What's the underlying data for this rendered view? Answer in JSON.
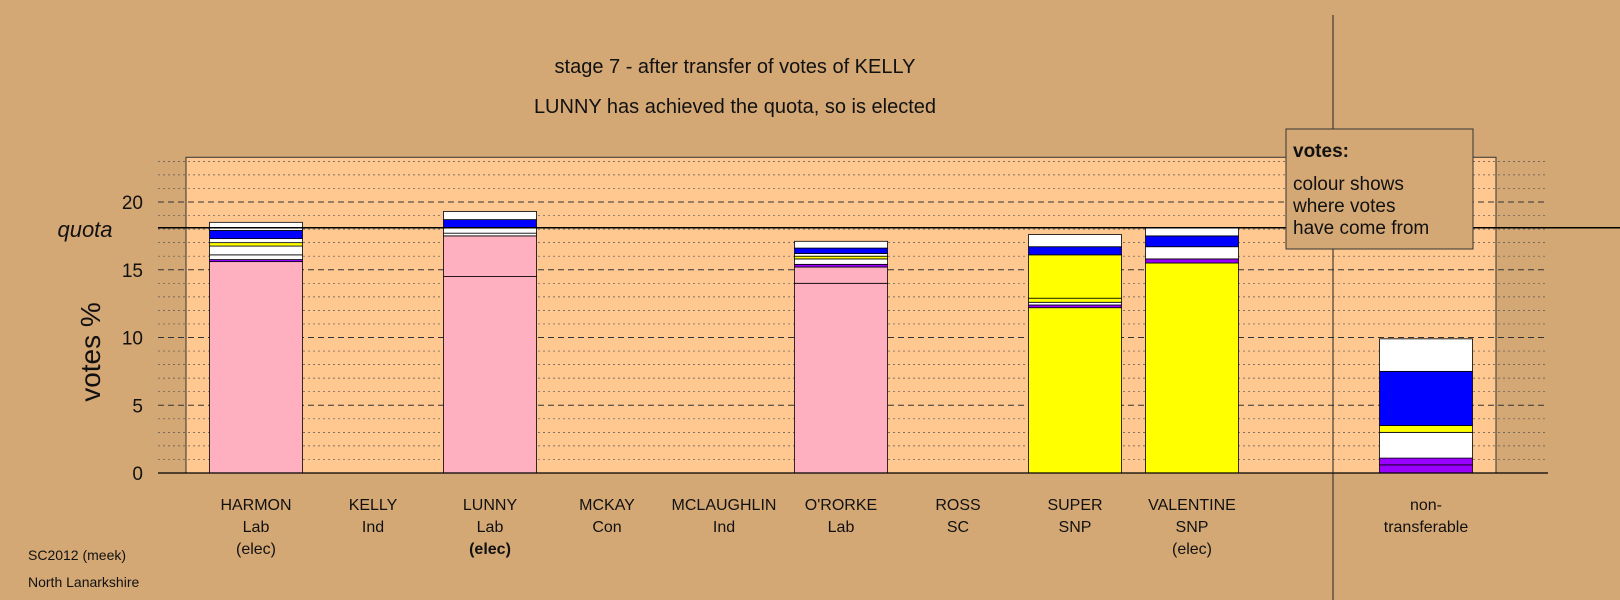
{
  "chart_data": {
    "type": "bar",
    "stacked": true,
    "title": "stage 7 - after transfer of votes of KELLY",
    "subtitle": "LUNNY has achieved the quota, so is elected",
    "ylabel": "votes %",
    "ylim": [
      0,
      23.3
    ],
    "yticks": [
      0,
      5,
      10,
      15,
      20
    ],
    "quota": 18.1,
    "quota_label": "quota",
    "legend": {
      "title": "votes:",
      "lines": [
        "colour shows",
        "where votes",
        "have come from"
      ],
      "position": "top-right"
    },
    "colors": {
      "pink": "#ffb0c0",
      "yellow": "#ffff00",
      "blue": "#0000ff",
      "white": "#ffffff",
      "purple": "#9a00ff",
      "navy": "#000080",
      "background": "#d4a874",
      "plot": "#ffc890"
    },
    "candidates": [
      {
        "name": "HARMON",
        "party": "Lab",
        "status": "(elec)",
        "status_bold": false,
        "segments": [
          {
            "color": "#ffb0c0",
            "value": 15.6
          },
          {
            "color": "#9a00ff",
            "value": 0.15
          },
          {
            "color": "#ffffff",
            "value": 0.35
          },
          {
            "color": "#ffffff",
            "value": 0.65
          },
          {
            "color": "#ffff00",
            "value": 0.25
          },
          {
            "color": "#ffffff",
            "value": 0.3
          },
          {
            "color": "#0000ff",
            "value": 0.6
          },
          {
            "color": "#ffffff",
            "value": 0.6
          }
        ]
      },
      {
        "name": "KELLY",
        "party": "Ind",
        "status": "",
        "status_bold": false,
        "segments": []
      },
      {
        "name": "LUNNY",
        "party": "Lab",
        "status": "(elec)",
        "status_bold": true,
        "segments": [
          {
            "color": "#ffb0c0",
            "value": 14.5
          },
          {
            "color": "#ffb0c0",
            "value": 3.0
          },
          {
            "color": "#ffffff",
            "value": 0.2
          },
          {
            "color": "#ffffff",
            "value": 0.4
          },
          {
            "color": "#0000ff",
            "value": 0.6
          },
          {
            "color": "#ffffff",
            "value": 0.6
          }
        ]
      },
      {
        "name": "MCKAY",
        "party": "Con",
        "status": "",
        "status_bold": false,
        "segments": []
      },
      {
        "name": "MCLAUGHLIN",
        "party": "Ind",
        "status": "",
        "status_bold": false,
        "segments": []
      },
      {
        "name": "O'RORKE",
        "party": "Lab",
        "status": "",
        "status_bold": false,
        "segments": [
          {
            "color": "#ffb0c0",
            "value": 14.0
          },
          {
            "color": "#ffb0c0",
            "value": 1.2
          },
          {
            "color": "#9a00ff",
            "value": 0.2
          },
          {
            "color": "#ffffff",
            "value": 0.4
          },
          {
            "color": "#ffff00",
            "value": 0.2
          },
          {
            "color": "#ffffff",
            "value": 0.2
          },
          {
            "color": "#0000ff",
            "value": 0.4
          },
          {
            "color": "#ffffff",
            "value": 0.5
          }
        ]
      },
      {
        "name": "ROSS",
        "party": "SC",
        "status": "",
        "status_bold": false,
        "segments": []
      },
      {
        "name": "SUPER",
        "party": "SNP",
        "status": "",
        "status_bold": false,
        "segments": [
          {
            "color": "#ffff00",
            "value": 12.2
          },
          {
            "color": "#9a00ff",
            "value": 0.2
          },
          {
            "color": "#ffffff",
            "value": 0.2
          },
          {
            "color": "#ffff00",
            "value": 0.3
          },
          {
            "color": "#ffff00",
            "value": 3.2
          },
          {
            "color": "#0000ff",
            "value": 0.6
          },
          {
            "color": "#ffffff",
            "value": 0.9
          }
        ]
      },
      {
        "name": "VALENTINE",
        "party": "SNP",
        "status": "(elec)",
        "status_bold": false,
        "segments": [
          {
            "color": "#ffff00",
            "value": 15.5
          },
          {
            "color": "#9a00ff",
            "value": 0.3
          },
          {
            "color": "#ffffff",
            "value": 0.9
          },
          {
            "color": "#0000ff",
            "value": 0.8
          },
          {
            "color": "#ffffff",
            "value": 0.6
          }
        ]
      }
    ],
    "non_transferable": {
      "label_lines": [
        "non-",
        "transferable"
      ],
      "segments": [
        {
          "color": "#9a00ff",
          "value": 0.6
        },
        {
          "color": "#9a00ff",
          "value": 0.5
        },
        {
          "color": "#ffffff",
          "value": 1.9
        },
        {
          "color": "#ffff00",
          "value": 0.5
        },
        {
          "color": "#0000ff",
          "value": 4.0
        },
        {
          "color": "#ffffff",
          "value": 2.4
        }
      ]
    }
  },
  "footer": {
    "election": "SC2012 (meek)",
    "area": "North Lanarkshire"
  }
}
